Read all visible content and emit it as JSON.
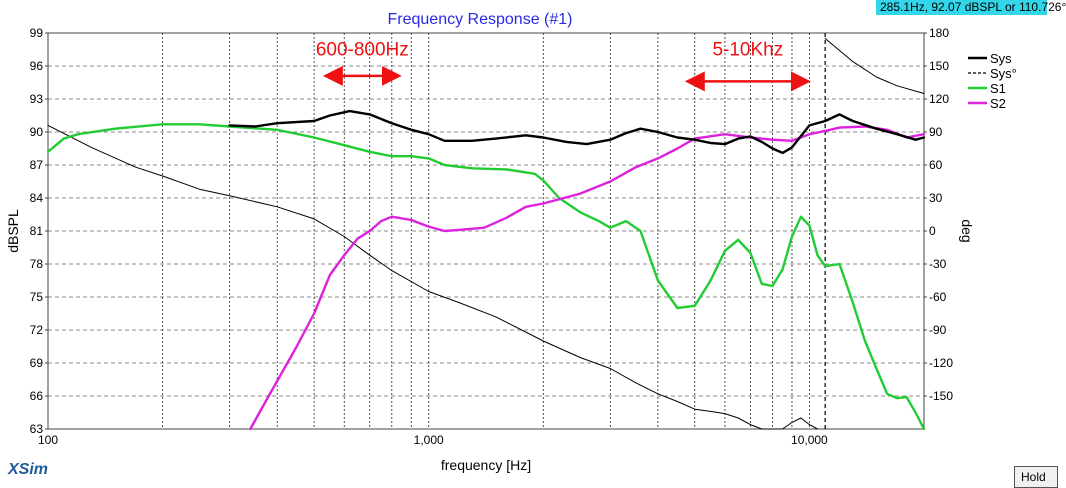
{
  "readout_text": "285.1Hz, 92.07 dBSPL or 110.726°",
  "brand": "XSim",
  "hold_label": "Hold",
  "chart_data": {
    "type": "line",
    "title": "Frequency Response (#1)",
    "xlabel": "frequency [Hz]",
    "ylabel": "dBSPL",
    "y2label": "deg",
    "xscale": "log",
    "xlim": [
      100,
      20000
    ],
    "ylim": [
      63,
      99
    ],
    "y2lim": [
      -180,
      180
    ],
    "xticks": [
      100,
      1000,
      10000
    ],
    "xtick_labels": [
      "100",
      "1,000",
      "10,000"
    ],
    "yticks": [
      63,
      66,
      69,
      72,
      75,
      78,
      81,
      84,
      87,
      90,
      93,
      96,
      99
    ],
    "y2ticks": [
      -150,
      -120,
      -90,
      -60,
      -30,
      0,
      30,
      60,
      90,
      120,
      150,
      180
    ],
    "grid": true,
    "legend_position": "right",
    "cursor_x": 11000,
    "series": [
      {
        "name": "Sys",
        "axis": "left",
        "color": "#000000",
        "dash": "solid",
        "width": 2.4,
        "points": [
          [
            300,
            90.6
          ],
          [
            350,
            90.5
          ],
          [
            400,
            90.8
          ],
          [
            500,
            91.0
          ],
          [
            550,
            91.5
          ],
          [
            620,
            91.9
          ],
          [
            700,
            91.6
          ],
          [
            800,
            90.8
          ],
          [
            900,
            90.2
          ],
          [
            1000,
            89.8
          ],
          [
            1100,
            89.2
          ],
          [
            1300,
            89.2
          ],
          [
            1500,
            89.4
          ],
          [
            1800,
            89.7
          ],
          [
            2000,
            89.5
          ],
          [
            2300,
            89.1
          ],
          [
            2600,
            88.9
          ],
          [
            3000,
            89.3
          ],
          [
            3300,
            89.9
          ],
          [
            3600,
            90.3
          ],
          [
            4000,
            90.0
          ],
          [
            4500,
            89.5
          ],
          [
            5000,
            89.3
          ],
          [
            5500,
            89.0
          ],
          [
            6000,
            88.9
          ],
          [
            6500,
            89.4
          ],
          [
            7000,
            89.6
          ],
          [
            7500,
            89.1
          ],
          [
            8000,
            88.5
          ],
          [
            8500,
            88.1
          ],
          [
            9000,
            88.6
          ],
          [
            10000,
            90.6
          ],
          [
            11000,
            91.0
          ],
          [
            12000,
            91.6
          ],
          [
            13000,
            91.0
          ],
          [
            15000,
            90.3
          ],
          [
            17000,
            89.8
          ],
          [
            19000,
            89.3
          ],
          [
            20000,
            89.5
          ]
        ]
      },
      {
        "name": "Sys°",
        "axis": "right",
        "color": "#000000",
        "dash": "solid",
        "width": 1,
        "points": [
          [
            100,
            96
          ],
          [
            130,
            76
          ],
          [
            170,
            58
          ],
          [
            200,
            50
          ],
          [
            250,
            38
          ],
          [
            300,
            32
          ],
          [
            400,
            22
          ],
          [
            500,
            11
          ],
          [
            600,
            -5
          ],
          [
            700,
            -22
          ],
          [
            800,
            -36
          ],
          [
            1000,
            -55
          ],
          [
            1200,
            -65
          ],
          [
            1500,
            -78
          ],
          [
            2000,
            -100
          ],
          [
            2500,
            -115
          ],
          [
            3000,
            -125
          ],
          [
            3500,
            -138
          ],
          [
            4000,
            -148
          ],
          [
            4500,
            -155
          ],
          [
            5000,
            -162
          ],
          [
            5500,
            -164
          ],
          [
            6000,
            -166
          ],
          [
            6500,
            -170
          ],
          [
            7000,
            -176
          ],
          [
            7500,
            -180
          ],
          [
            8000,
            -182
          ],
          [
            8500,
            -180
          ],
          [
            9000,
            -174
          ],
          [
            9500,
            -170
          ],
          [
            10000,
            -176
          ],
          [
            10500,
            -184
          ],
          [
            11000,
            175
          ],
          [
            13000,
            154
          ],
          [
            15000,
            140
          ],
          [
            17000,
            132
          ],
          [
            20000,
            125
          ]
        ]
      },
      {
        "name": "S1",
        "axis": "left",
        "color": "#22cc33",
        "dash": "solid",
        "width": 2.4,
        "points": [
          [
            100,
            88.2
          ],
          [
            110,
            89.4
          ],
          [
            120,
            89.8
          ],
          [
            150,
            90.3
          ],
          [
            200,
            90.7
          ],
          [
            250,
            90.7
          ],
          [
            300,
            90.5
          ],
          [
            400,
            90.2
          ],
          [
            500,
            89.5
          ],
          [
            600,
            88.8
          ],
          [
            700,
            88.2
          ],
          [
            800,
            87.8
          ],
          [
            900,
            87.8
          ],
          [
            1000,
            87.6
          ],
          [
            1100,
            87.0
          ],
          [
            1300,
            86.7
          ],
          [
            1600,
            86.6
          ],
          [
            1900,
            86.2
          ],
          [
            2000,
            85.6
          ],
          [
            2200,
            84.0
          ],
          [
            2500,
            82.7
          ],
          [
            2800,
            81.9
          ],
          [
            3000,
            81.3
          ],
          [
            3300,
            81.9
          ],
          [
            3600,
            81.0
          ],
          [
            4000,
            76.5
          ],
          [
            4500,
            74.0
          ],
          [
            5000,
            74.2
          ],
          [
            5500,
            76.5
          ],
          [
            6000,
            79.2
          ],
          [
            6500,
            80.2
          ],
          [
            7000,
            79.0
          ],
          [
            7500,
            76.2
          ],
          [
            8000,
            76.0
          ],
          [
            8500,
            77.5
          ],
          [
            9000,
            80.5
          ],
          [
            9500,
            82.3
          ],
          [
            10000,
            81.5
          ],
          [
            10500,
            78.8
          ],
          [
            11000,
            77.8
          ],
          [
            12000,
            78.0
          ],
          [
            13000,
            74.5
          ],
          [
            14000,
            71.0
          ],
          [
            15000,
            68.5
          ],
          [
            16000,
            66.2
          ],
          [
            17000,
            65.8
          ],
          [
            18000,
            65.9
          ],
          [
            19000,
            64.5
          ],
          [
            20000,
            63.0
          ]
        ]
      },
      {
        "name": "S2",
        "axis": "left",
        "color": "#dd22dd",
        "dash": "solid",
        "width": 2.4,
        "points": [
          [
            340,
            63
          ],
          [
            380,
            66
          ],
          [
            450,
            70.5
          ],
          [
            500,
            73.5
          ],
          [
            550,
            77.0
          ],
          [
            600,
            78.8
          ],
          [
            650,
            80.3
          ],
          [
            700,
            81.0
          ],
          [
            750,
            81.9
          ],
          [
            800,
            82.3
          ],
          [
            900,
            82.0
          ],
          [
            1000,
            81.4
          ],
          [
            1100,
            81.0
          ],
          [
            1200,
            81.1
          ],
          [
            1400,
            81.3
          ],
          [
            1600,
            82.2
          ],
          [
            1800,
            83.2
          ],
          [
            2000,
            83.5
          ],
          [
            2500,
            84.4
          ],
          [
            3000,
            85.5
          ],
          [
            3500,
            86.8
          ],
          [
            4000,
            87.6
          ],
          [
            4500,
            88.5
          ],
          [
            5000,
            89.4
          ],
          [
            6000,
            89.8
          ],
          [
            7000,
            89.5
          ],
          [
            8000,
            89.3
          ],
          [
            9000,
            89.2
          ],
          [
            10000,
            89.8
          ],
          [
            11000,
            90.1
          ],
          [
            12000,
            90.4
          ],
          [
            14000,
            90.5
          ],
          [
            16000,
            90.2
          ],
          [
            18000,
            89.5
          ],
          [
            20000,
            89.8
          ]
        ]
      }
    ],
    "annotations": [
      {
        "text": "600-800Hz",
        "color": "#ee1111",
        "arrow_from": 560,
        "arrow_to": 800,
        "arrow_y": 95.1,
        "text_y": 97.5
      },
      {
        "text": "5-10Khz",
        "color": "#ee1111",
        "arrow_from": 5000,
        "arrow_to": 9500,
        "arrow_y": 94.6,
        "text_y": 97.5
      }
    ]
  }
}
